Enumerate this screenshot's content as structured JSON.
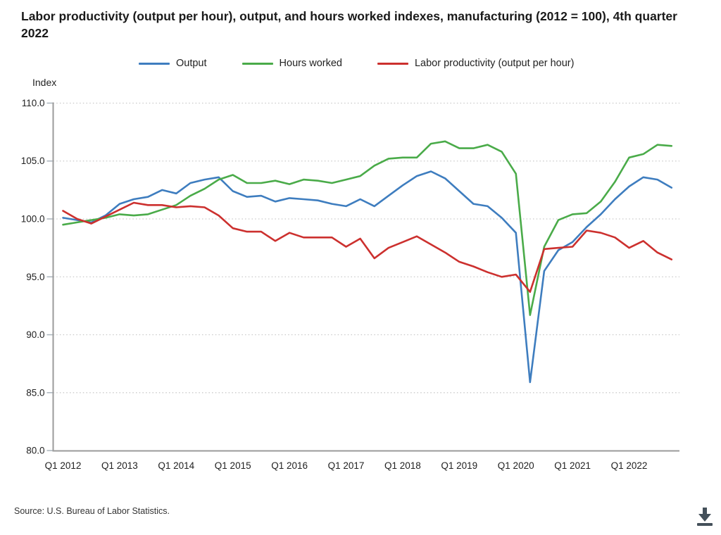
{
  "page": {
    "title": "Labor productivity (output per hour), output, and hours worked indexes, manufacturing (2012 = 100), 4th quarter 2022",
    "source": "Source: U.S. Bureau of Labor Statistics."
  },
  "legend": {
    "items": [
      {
        "label": "Output",
        "color": "#3E7DBF"
      },
      {
        "label": "Hours worked",
        "color": "#4AAB49"
      },
      {
        "label": "Labor productivity (output per hour)",
        "color": "#CC302E"
      }
    ]
  },
  "chart_data": {
    "type": "line",
    "title": "Labor productivity (output per hour), output, and hours worked indexes, manufacturing (2012 = 100), 4th quarter 2022",
    "ylabel": "Index",
    "xlabel": "",
    "ylim": [
      80,
      110
    ],
    "y_tick_labels": [
      "80.0",
      "85.0",
      "90.0",
      "95.0",
      "100.0",
      "105.0",
      "110.0"
    ],
    "x_tick_labels": [
      "Q1 2012",
      "Q1 2013",
      "Q1 2014",
      "Q1 2015",
      "Q1 2016",
      "Q1 2017",
      "Q1 2018",
      "Q1 2019",
      "Q1 2020",
      "Q1 2021",
      "Q1 2022"
    ],
    "grid": "horizontal-dotted",
    "legend_position": "top",
    "quarters": [
      "Q1 2012",
      "Q2 2012",
      "Q3 2012",
      "Q4 2012",
      "Q1 2013",
      "Q2 2013",
      "Q3 2013",
      "Q4 2013",
      "Q1 2014",
      "Q2 2014",
      "Q3 2014",
      "Q4 2014",
      "Q1 2015",
      "Q2 2015",
      "Q3 2015",
      "Q4 2015",
      "Q1 2016",
      "Q2 2016",
      "Q3 2016",
      "Q4 2016",
      "Q1 2017",
      "Q2 2017",
      "Q3 2017",
      "Q4 2017",
      "Q1 2018",
      "Q2 2018",
      "Q3 2018",
      "Q4 2018",
      "Q1 2019",
      "Q2 2019",
      "Q3 2019",
      "Q4 2019",
      "Q1 2020",
      "Q2 2020",
      "Q3 2020",
      "Q4 2020",
      "Q1 2021",
      "Q2 2021",
      "Q3 2021",
      "Q4 2021",
      "Q1 2022",
      "Q2 2022",
      "Q3 2022",
      "Q4 2022"
    ],
    "series": [
      {
        "name": "Output",
        "color": "#3E7DBF",
        "values": [
          100.1,
          99.9,
          99.7,
          100.3,
          101.3,
          101.7,
          101.9,
          102.5,
          102.2,
          103.1,
          103.4,
          103.6,
          102.4,
          101.9,
          102.0,
          101.5,
          101.8,
          101.7,
          101.6,
          101.3,
          101.1,
          101.7,
          101.1,
          102.0,
          102.9,
          103.7,
          104.1,
          103.5,
          102.4,
          101.3,
          101.1,
          100.1,
          98.8,
          85.9,
          95.5,
          97.3,
          98.0,
          99.3,
          100.4,
          101.7,
          102.8,
          103.6,
          103.4,
          102.7
        ]
      },
      {
        "name": "Hours worked",
        "color": "#4AAB49",
        "values": [
          99.5,
          99.7,
          99.9,
          100.1,
          100.4,
          100.3,
          100.4,
          100.8,
          101.2,
          102.0,
          102.6,
          103.4,
          103.8,
          103.1,
          103.1,
          103.3,
          103.0,
          103.4,
          103.3,
          103.1,
          103.4,
          103.7,
          104.6,
          105.2,
          105.3,
          105.3,
          106.5,
          106.7,
          106.1,
          106.1,
          106.4,
          105.8,
          103.9,
          91.7,
          97.6,
          99.9,
          100.4,
          100.5,
          101.5,
          103.2,
          105.3,
          105.6,
          106.4,
          106.3
        ]
      },
      {
        "name": "Labor productivity (output per hour)",
        "color": "#CC302E",
        "values": [
          100.7,
          100.0,
          99.6,
          100.2,
          100.8,
          101.4,
          101.2,
          101.2,
          101.0,
          101.1,
          101.0,
          100.3,
          99.2,
          98.9,
          98.9,
          98.1,
          98.8,
          98.4,
          98.4,
          98.4,
          97.6,
          98.3,
          96.6,
          97.5,
          98.0,
          98.5,
          97.8,
          97.1,
          96.3,
          95.9,
          95.4,
          95.0,
          95.2,
          93.7,
          97.4,
          97.5,
          97.6,
          99.0,
          98.8,
          98.4,
          97.5,
          98.1,
          97.1,
          96.5
        ]
      }
    ]
  }
}
